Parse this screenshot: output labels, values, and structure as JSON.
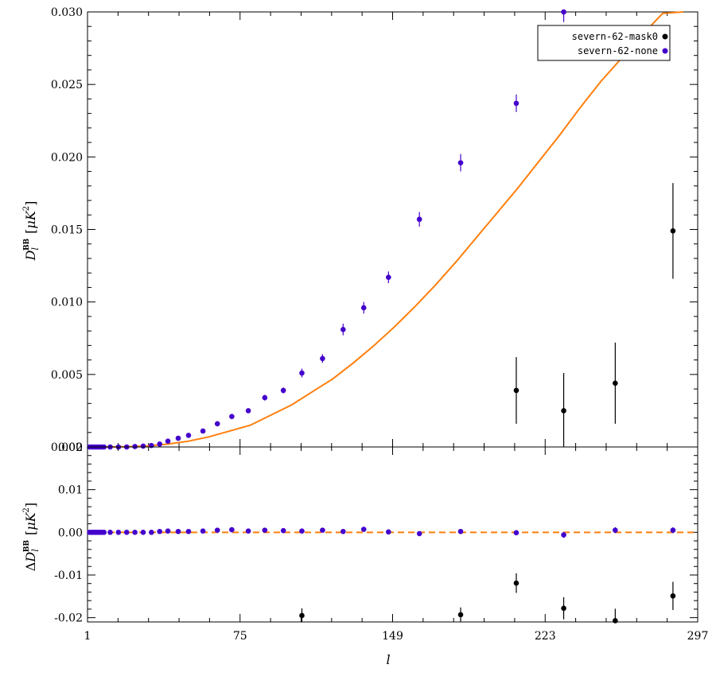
{
  "chart_data": {
    "type": "scatter",
    "colors": {
      "mask0": "#000000",
      "none": "#4400cc",
      "model": "#ff7f0e"
    },
    "xlabel": "l",
    "xlim": [
      1,
      297
    ],
    "xticks": [
      1,
      75,
      149,
      223,
      297
    ],
    "legend_position": "top-right",
    "legend": [
      {
        "label": "severn-62-mask0",
        "marker": "circle",
        "color": "#000000"
      },
      {
        "label": "severn-62-none",
        "marker": "circle",
        "color": "#4400cc"
      }
    ],
    "top": {
      "ylabel_main": "D",
      "ylabel_sub": "l",
      "ylabel_sup": "BB",
      "ylabel_unit_open": "[",
      "ylabel_unit": "μK",
      "ylabel_unit_sup": "2",
      "ylabel_unit_close": "]",
      "ylim": [
        0,
        0.03
      ],
      "yticks": [
        "0.000",
        "0.005",
        "0.010",
        "0.015",
        "0.020",
        "0.025",
        "0.030"
      ],
      "model": {
        "name": "",
        "style": "solid",
        "x": [
          1,
          10,
          20,
          30,
          40,
          50,
          60,
          70,
          80,
          90,
          100,
          110,
          120,
          130,
          140,
          150,
          160,
          170,
          180,
          190,
          200,
          210,
          220,
          230,
          240,
          250,
          260,
          270,
          280,
          290
        ],
        "y": [
          0.0,
          0.0,
          2e-05,
          7e-05,
          0.0002,
          0.0004,
          0.0007,
          0.0011,
          0.0015,
          0.0022,
          0.0029,
          0.0038,
          0.0047,
          0.0058,
          0.007,
          0.0083,
          0.0097,
          0.0112,
          0.0128,
          0.0145,
          0.0162,
          0.0179,
          0.0197,
          0.0215,
          0.0234,
          0.0252,
          0.0268,
          0.0284,
          0.0299,
          0.0313
        ]
      },
      "series": [
        {
          "name": "severn-62-mask0",
          "x": [
            209,
            232,
            257,
            285
          ],
          "y": [
            0.0039,
            0.0025,
            0.0044,
            0.0149
          ],
          "err": [
            0.0023,
            0.0026,
            0.0028,
            0.0033
          ]
        },
        {
          "name": "severn-62-none",
          "x": [
            2,
            3,
            4,
            5,
            6,
            7,
            8,
            9,
            12,
            16,
            20,
            24,
            28,
            32,
            36,
            40,
            45,
            50,
            57,
            64,
            71,
            79,
            87,
            96,
            105,
            115,
            125,
            135,
            147,
            162,
            182,
            209,
            232,
            257,
            285
          ],
          "y": [
            0.0,
            0.0,
            0.0,
            0.0,
            0.0,
            0.0,
            0.0,
            0.0,
            0.0,
            0.0,
            0.0,
            3e-05,
            6e-05,
            0.0001,
            0.0002,
            0.0004,
            0.0006,
            0.0008,
            0.0011,
            0.0016,
            0.0021,
            0.0025,
            0.0034,
            0.0039,
            0.0051,
            0.0061,
            0.0081,
            0.0096,
            0.0117,
            0.0157,
            0.0196,
            0.0237,
            0.03,
            0.0308,
            0.031
          ],
          "err": [
            0,
            0,
            0,
            0,
            0,
            0,
            0,
            0,
            0,
            0,
            0,
            0,
            0,
            0,
            0,
            0,
            0,
            0,
            0,
            0.0001,
            0.0001,
            0.0001,
            0.0002,
            0.0002,
            0.0003,
            0.0003,
            0.0004,
            0.0004,
            0.0004,
            0.0005,
            0.0006,
            0.0006,
            0.0007,
            0.0007,
            0.0007
          ]
        }
      ]
    },
    "bottom": {
      "ylabel_prefix": "Δ",
      "ylabel_main": "D",
      "ylabel_sub": "l",
      "ylabel_sup": "BB",
      "ylabel_unit_open": "[",
      "ylabel_unit": "μK",
      "ylabel_unit_sup": "2",
      "ylabel_unit_close": "]",
      "ylim": [
        -0.021,
        0.02
      ],
      "yticks": [
        0.02,
        0.01,
        0.0,
        -0.01,
        -0.02
      ],
      "ytick_labels": [
        "0.02",
        "0.01",
        "0.00",
        "-0.01",
        "-0.02"
      ],
      "zero_line": {
        "y": 0.0,
        "style": "dashed"
      },
      "series": [
        {
          "name": "severn-62-mask0",
          "x": [
            105,
            182,
            209,
            232,
            257,
            285
          ],
          "y": [
            -0.0195,
            -0.0193,
            -0.0119,
            -0.0178,
            -0.0207,
            -0.0149
          ],
          "err": [
            0.0017,
            0.0017,
            0.0023,
            0.0026,
            0.0028,
            0.0033
          ]
        },
        {
          "name": "severn-62-none",
          "x": [
            2,
            3,
            4,
            5,
            6,
            7,
            8,
            9,
            12,
            16,
            20,
            24,
            28,
            32,
            36,
            40,
            45,
            50,
            57,
            64,
            71,
            79,
            87,
            96,
            105,
            115,
            125,
            135,
            147,
            162,
            182,
            209,
            232,
            257,
            285
          ],
          "y": [
            0.0,
            0.0,
            0.0,
            0.0,
            0.0,
            0.0,
            0.0,
            0.0,
            0.0,
            0.0,
            0.0,
            0.0,
            0.0,
            0.0,
            0.0002,
            0.0003,
            0.0002,
            0.0002,
            0.0003,
            0.0005,
            0.0006,
            0.0003,
            0.0005,
            0.0004,
            0.0003,
            0.0005,
            0.0002,
            0.0007,
            0.0001,
            -0.0003,
            0.0002,
            -0.0001,
            -0.0006,
            0.0005,
            0.0005
          ],
          "err": [
            0,
            0,
            0,
            0,
            0,
            0,
            0,
            0,
            0,
            0,
            0,
            0,
            0,
            0,
            0,
            0,
            0,
            0,
            0,
            0,
            0,
            0,
            0.0002,
            0.0002,
            0.0003,
            0.0003,
            0.0004,
            0.0004,
            0.0004,
            0.0005,
            0.0006,
            0.0006,
            0.0007,
            0.0007,
            0.0007
          ]
        }
      ]
    }
  }
}
